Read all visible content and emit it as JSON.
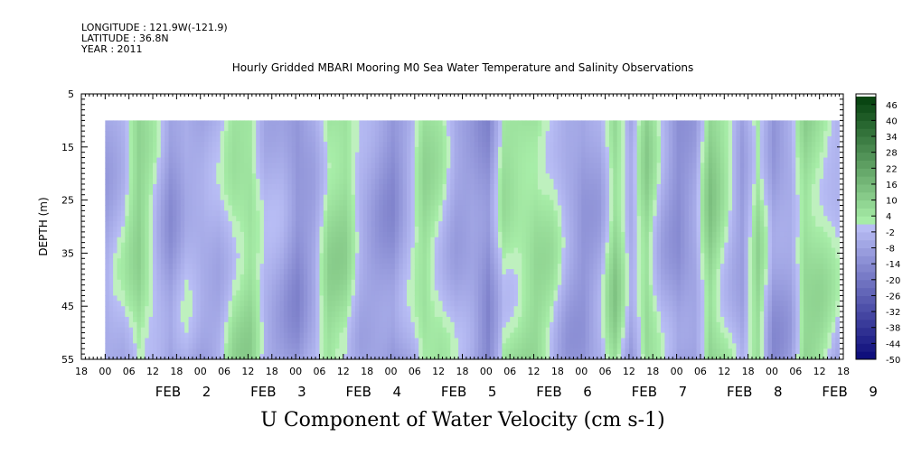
{
  "header": {
    "longitude": "LONGITUDE : 121.9W(-121.9)",
    "latitude": "LATITUDE : 36.8N",
    "year": "YEAR : 2011"
  },
  "chart_data": {
    "type": "heatmap",
    "title": "Hourly Gridded MBARI Mooring M0 Sea Water Temperature and Salinity Observations",
    "subtitle": "U Component of Water Velocity (cm s-1)",
    "xlabel": "",
    "ylabel": "DEPTH (m)",
    "x_range": [
      "2011-02-01 18:00",
      "2011-02-09 18:00"
    ],
    "data_x_range": [
      "2011-02-02 00:00",
      "2011-02-09 17:00"
    ],
    "y_range": [
      5,
      55
    ],
    "y_inverted": true,
    "data_y_range": [
      10,
      55
    ],
    "y_ticks": [
      5,
      15,
      25,
      35,
      45,
      55
    ],
    "x_hour_labels": [
      "18",
      "00",
      "06",
      "12",
      "18",
      "00",
      "06",
      "12",
      "18",
      "00",
      "06",
      "12",
      "18",
      "00",
      "06",
      "12",
      "18",
      "00",
      "06",
      "12",
      "18",
      "00",
      "06",
      "12",
      "18",
      "00",
      "06",
      "12",
      "18",
      "00",
      "06",
      "12",
      "18"
    ],
    "x_day_labels": [
      {
        "label": "FEB  2",
        "month": "FEB",
        "day": "2"
      },
      {
        "label": "FEB  3",
        "month": "FEB",
        "day": "3"
      },
      {
        "label": "FEB  4",
        "month": "FEB",
        "day": "4"
      },
      {
        "label": "FEB  5",
        "month": "FEB",
        "day": "5"
      },
      {
        "label": "FEB  6",
        "month": "FEB",
        "day": "6"
      },
      {
        "label": "FEB  7",
        "month": "FEB",
        "day": "7"
      },
      {
        "label": "FEB  8",
        "month": "FEB",
        "day": "8"
      },
      {
        "label": "FEB  9",
        "month": "FEB",
        "day": "9"
      }
    ],
    "colorbar": {
      "range": [
        -50,
        50
      ],
      "step": 3,
      "tick_labels": [
        "46",
        "40",
        "34",
        "28",
        "22",
        "16",
        "10",
        "4",
        "-2",
        "-8",
        "-14",
        "-20",
        "-26",
        "-32",
        "-38",
        "-44",
        "-50"
      ],
      "palette": "blue (negative) to green (positive)"
    },
    "pattern_note_columns": [
      {
        "time_hours": 0,
        "u": -6
      },
      {
        "time_hours": 4,
        "u": -2
      },
      {
        "time_hours": 8,
        "u": 8
      },
      {
        "time_hours": 12,
        "u": 0
      },
      {
        "time_hours": 16,
        "u": -10
      },
      {
        "time_hours": 20,
        "u": -4
      },
      {
        "time_hours": 24,
        "u": -6
      },
      {
        "time_hours": 28,
        "u": -4
      },
      {
        "time_hours": 32,
        "u": 4
      },
      {
        "time_hours": 36,
        "u": 6
      },
      {
        "time_hours": 40,
        "u": -4
      },
      {
        "time_hours": 44,
        "u": -6
      },
      {
        "time_hours": 48,
        "u": -12
      },
      {
        "time_hours": 52,
        "u": -6
      },
      {
        "time_hours": 56,
        "u": 6
      },
      {
        "time_hours": 60,
        "u": 6
      },
      {
        "time_hours": 64,
        "u": -4
      },
      {
        "time_hours": 68,
        "u": -8
      },
      {
        "time_hours": 72,
        "u": -12
      },
      {
        "time_hours": 76,
        "u": -4
      },
      {
        "time_hours": 80,
        "u": 6
      },
      {
        "time_hours": 84,
        "u": 2
      },
      {
        "time_hours": 88,
        "u": -6
      },
      {
        "time_hours": 92,
        "u": -8
      },
      {
        "time_hours": 96,
        "u": -14
      },
      {
        "time_hours": 100,
        "u": 4
      },
      {
        "time_hours": 104,
        "u": 4
      },
      {
        "time_hours": 108,
        "u": 6
      },
      {
        "time_hours": 112,
        "u": 2
      },
      {
        "time_hours": 116,
        "u": -6
      },
      {
        "time_hours": 120,
        "u": -10
      },
      {
        "time_hours": 124,
        "u": -6
      },
      {
        "time_hours": 128,
        "u": 8
      },
      {
        "time_hours": 132,
        "u": -6
      },
      {
        "time_hours": 136,
        "u": 8
      },
      {
        "time_hours": 140,
        "u": -4
      },
      {
        "time_hours": 144,
        "u": -12
      },
      {
        "time_hours": 148,
        "u": -8
      },
      {
        "time_hours": 152,
        "u": 10
      },
      {
        "time_hours": 156,
        "u": 2
      },
      {
        "time_hours": 160,
        "u": -8
      },
      {
        "time_hours": 164,
        "u": 6
      },
      {
        "time_hours": 168,
        "u": -10
      },
      {
        "time_hours": 172,
        "u": -6
      },
      {
        "time_hours": 176,
        "u": 8
      },
      {
        "time_hours": 180,
        "u": 4
      },
      {
        "time_hours": 184,
        "u": -2
      },
      {
        "time_hours": 185,
        "u": 4
      }
    ]
  }
}
